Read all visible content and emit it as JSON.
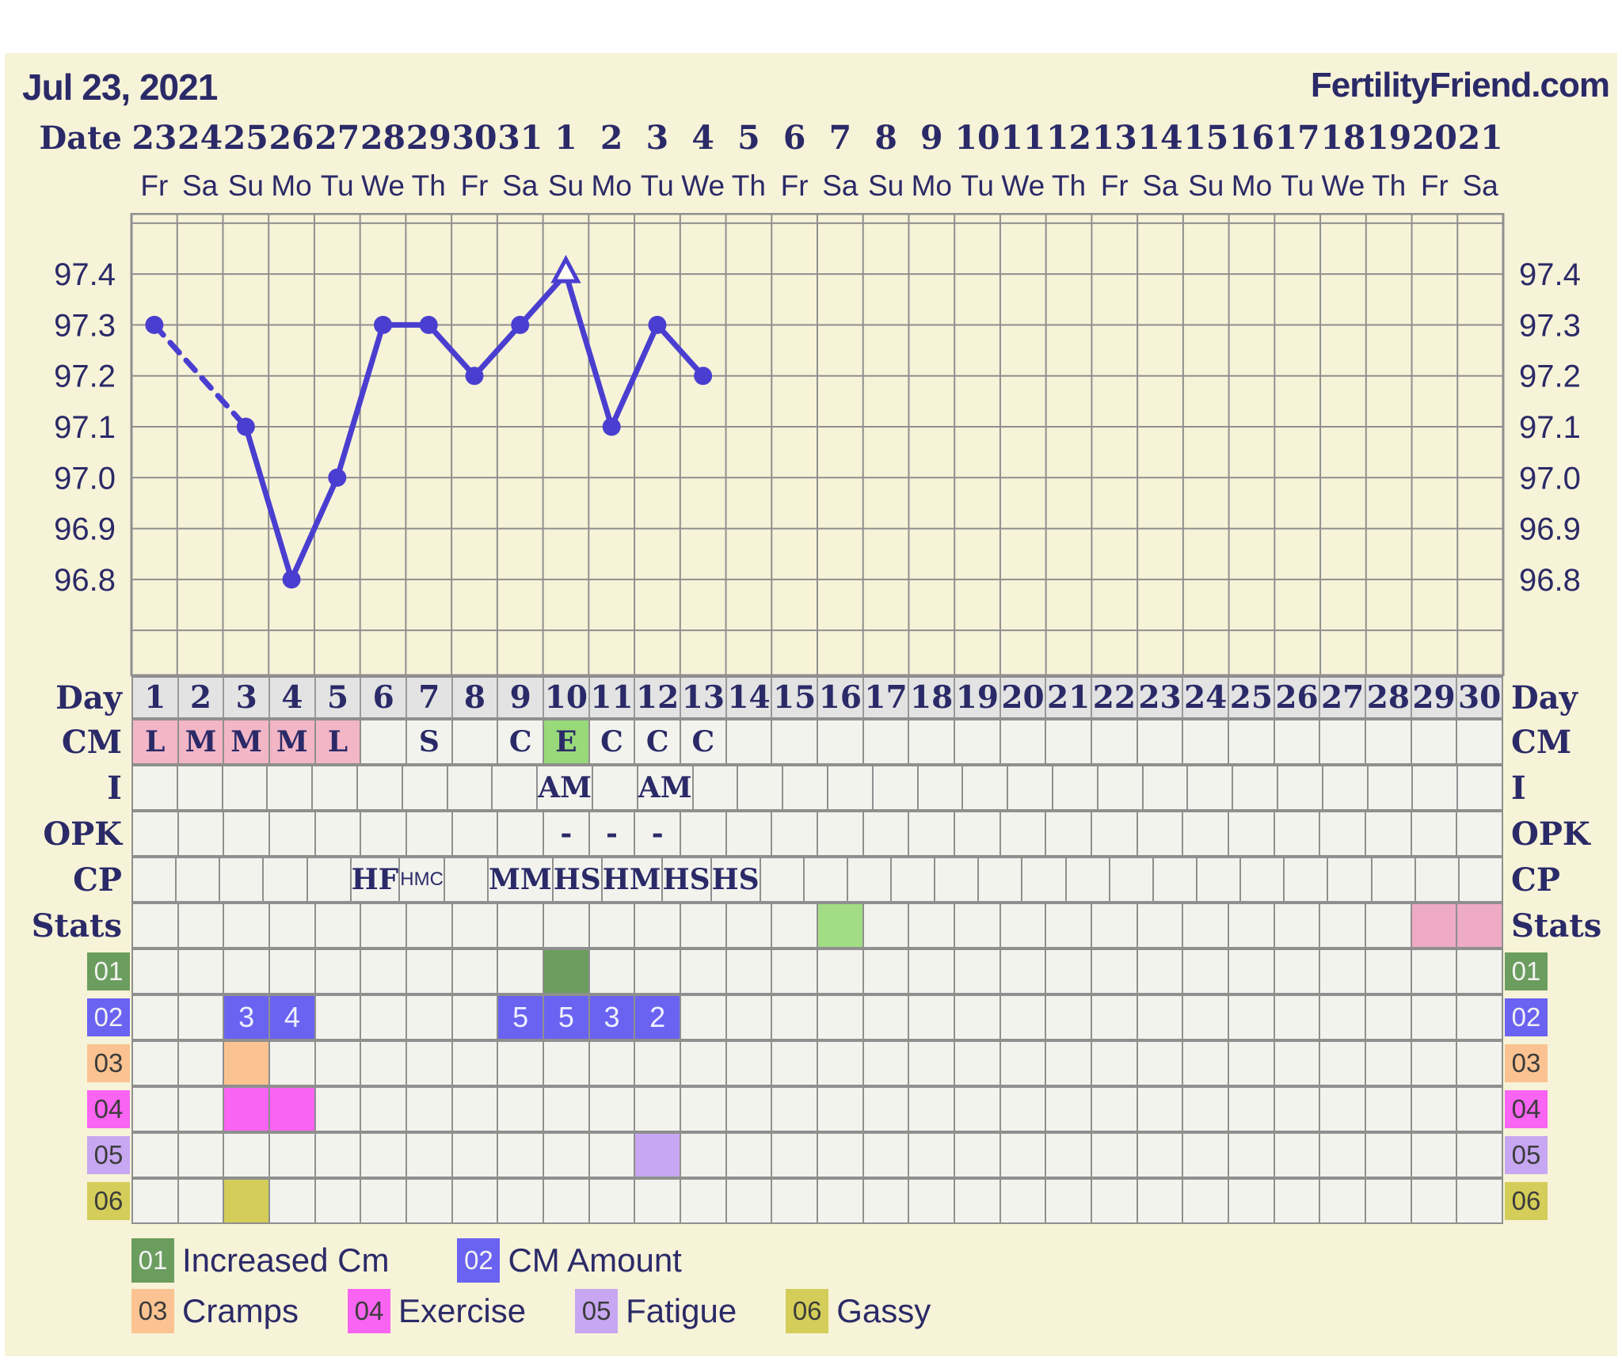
{
  "header": {
    "date_title": "Jul 23, 2021",
    "site": "FertilityFriend.com"
  },
  "calendar": {
    "date_label": "Date",
    "dates": [
      "23",
      "24",
      "25",
      "26",
      "27",
      "28",
      "29",
      "30",
      "31",
      "1",
      "2",
      "3",
      "4",
      "5",
      "6",
      "7",
      "8",
      "9",
      "10",
      "11",
      "12",
      "13",
      "14",
      "15",
      "16",
      "17",
      "18",
      "19",
      "20",
      "21"
    ],
    "weekdays": [
      "Fr",
      "Sa",
      "Su",
      "Mo",
      "Tu",
      "We",
      "Th",
      "Fr",
      "Sa",
      "Su",
      "Mo",
      "Tu",
      "We",
      "Th",
      "Fr",
      "Sa",
      "Su",
      "Mo",
      "Tu",
      "We",
      "Th",
      "Fr",
      "Sa",
      "Su",
      "Mo",
      "Tu",
      "We",
      "Th",
      "Fr",
      "Sa"
    ]
  },
  "chart_data": {
    "type": "line",
    "days_total": 30,
    "x": [
      1,
      3,
      4,
      5,
      6,
      7,
      8,
      9,
      10,
      11,
      12,
      13
    ],
    "temps_f": [
      97.3,
      97.1,
      96.8,
      97.0,
      97.3,
      97.3,
      97.2,
      97.3,
      97.4,
      97.1,
      97.3,
      97.2
    ],
    "missing_days": [
      2
    ],
    "dashed_between_days": [
      1,
      3
    ],
    "open_triangle_day": 10,
    "y_ticks": [
      "97.4",
      "97.3",
      "97.2",
      "97.1",
      "97.0",
      "96.9",
      "96.8"
    ],
    "ylim": [
      96.61,
      97.52
    ],
    "grid": "on",
    "line_color": "#4a3ed0",
    "gridline_color": "#8f8f8f"
  },
  "palette": {
    "navy": "#2b2a68",
    "panel": "#f7f3d8",
    "cellbg": "#f3f3ee",
    "daybg": "#e3e3e3",
    "grid": "#8f8f8f",
    "pink": "#f2b6c6",
    "green": "#98da79",
    "statgreen": "#a2dc84",
    "statpink": "#efaac4",
    "green01": "#6b9d5e",
    "blue02": "#6a63f1",
    "peach03": "#fac391",
    "magenta04": "#f964f2",
    "purple05": "#c7a7f1",
    "yellow06": "#d4cd59"
  },
  "grid_rows": [
    {
      "key": "day",
      "label": "Day",
      "type": "day"
    },
    {
      "key": "cm",
      "label": "CM",
      "cells": {
        "1": {
          "t": "L",
          "bg": "pink"
        },
        "2": {
          "t": "M",
          "bg": "pink"
        },
        "3": {
          "t": "M",
          "bg": "pink"
        },
        "4": {
          "t": "M",
          "bg": "pink"
        },
        "5": {
          "t": "L",
          "bg": "pink"
        },
        "7": {
          "t": "S"
        },
        "9": {
          "t": "C"
        },
        "10": {
          "t": "E",
          "bg": "green"
        },
        "11": {
          "t": "C"
        },
        "12": {
          "t": "C"
        },
        "13": {
          "t": "C"
        }
      }
    },
    {
      "key": "i",
      "label": "I",
      "cells": {
        "10": {
          "t": "AM"
        },
        "12": {
          "t": "AM"
        }
      }
    },
    {
      "key": "opk",
      "label": "OPK",
      "cells": {
        "10": {
          "t": "-"
        },
        "11": {
          "t": "-"
        },
        "12": {
          "t": "-"
        }
      }
    },
    {
      "key": "cp",
      "label": "CP",
      "cells": {
        "6": {
          "t": "HF"
        },
        "7": {
          "t": "HMC",
          "small": true
        },
        "9": {
          "t": "MM"
        },
        "10": {
          "t": "HS"
        },
        "11": {
          "t": "HM"
        },
        "12": {
          "t": "HS"
        },
        "13": {
          "t": "HS"
        }
      }
    },
    {
      "key": "stats",
      "label": "Stats",
      "cells": {
        "16": {
          "bg": "statgreen"
        },
        "29": {
          "bg": "statpink"
        },
        "30": {
          "bg": "statpink"
        }
      }
    },
    {
      "key": "01",
      "label": "01",
      "chip": "green01",
      "chiplite": true,
      "cells": {
        "10": {
          "bg": "green01"
        }
      }
    },
    {
      "key": "02",
      "label": "02",
      "chip": "blue02",
      "chiplite": true,
      "cells": {
        "3": {
          "t": "3",
          "bg": "blue02",
          "lite": true
        },
        "4": {
          "t": "4",
          "bg": "blue02",
          "lite": true
        },
        "9": {
          "t": "5",
          "bg": "blue02",
          "lite": true
        },
        "10": {
          "t": "5",
          "bg": "blue02",
          "lite": true
        },
        "11": {
          "t": "3",
          "bg": "blue02",
          "lite": true
        },
        "12": {
          "t": "2",
          "bg": "blue02",
          "lite": true
        }
      }
    },
    {
      "key": "03",
      "label": "03",
      "chip": "peach03",
      "cells": {
        "3": {
          "bg": "peach03"
        }
      }
    },
    {
      "key": "04",
      "label": "04",
      "chip": "magenta04",
      "cells": {
        "3": {
          "bg": "magenta04"
        },
        "4": {
          "bg": "magenta04"
        }
      }
    },
    {
      "key": "05",
      "label": "05",
      "chip": "purple05",
      "cells": {
        "12": {
          "bg": "purple05"
        }
      }
    },
    {
      "key": "06",
      "label": "06",
      "chip": "yellow06",
      "cells": {
        "3": {
          "bg": "yellow06"
        }
      }
    }
  ],
  "legend": {
    "row1": [
      {
        "num": "01",
        "label": "Increased Cm",
        "chip": "green01",
        "lite": true
      },
      {
        "num": "02",
        "label": "CM Amount",
        "chip": "blue02",
        "lite": true
      }
    ],
    "row2": [
      {
        "num": "03",
        "label": "Cramps",
        "chip": "peach03"
      },
      {
        "num": "04",
        "label": "Exercise",
        "chip": "magenta04"
      },
      {
        "num": "05",
        "label": "Fatigue",
        "chip": "purple05"
      },
      {
        "num": "06",
        "label": "Gassy",
        "chip": "yellow06"
      }
    ]
  }
}
